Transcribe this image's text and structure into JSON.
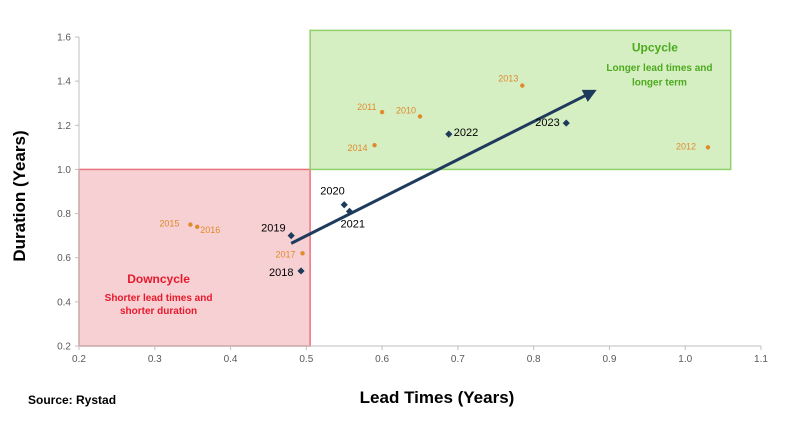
{
  "source_text": "Source: Rystad",
  "colors": {
    "orange": "#E08A2C",
    "navy": "#1F3B5C",
    "downcycle_fill": "#F6D0D3",
    "downcycle_border": "#E8737D",
    "downcycle_text": "#E8192C",
    "upcycle_fill": "#D5EFC3",
    "upcycle_border": "#8FD16A",
    "upcycle_text": "#4CAA1E",
    "axis": "#BFBFBF"
  },
  "chart_data": {
    "type": "scatter",
    "xlabel": "Lead Times (Years)",
    "ylabel": "Duration (Years)",
    "xlim": [
      0.2,
      1.1
    ],
    "ylim": [
      0.2,
      1.6
    ],
    "xticks": [
      0.2,
      0.3,
      0.4,
      0.5,
      0.6,
      0.7,
      0.8,
      0.9,
      1.0,
      1.1
    ],
    "xtick_labels": [
      "0.2",
      "0.3",
      "0.4",
      "0.5",
      "0.6",
      "0.7",
      "0.8",
      "0.9",
      "1.0",
      "1.1"
    ],
    "yticks": [
      0.2,
      0.4,
      0.6,
      0.8,
      1.0,
      1.2,
      1.4,
      1.6
    ],
    "ytick_labels": [
      "0.2",
      "0.4",
      "0.6",
      "0.8",
      "1.0",
      "1.2",
      "1.4",
      "1.6"
    ],
    "grid": false,
    "series": [
      {
        "marker": "circle",
        "points": [
          {
            "label": "2012",
            "x": 1.03,
            "y": 1.1
          },
          {
            "label": "2013",
            "x": 0.785,
            "y": 1.38
          },
          {
            "label": "2010",
            "x": 0.65,
            "y": 1.24
          },
          {
            "label": "2011",
            "x": 0.6,
            "y": 1.26
          },
          {
            "label": "2014",
            "x": 0.59,
            "y": 1.11
          },
          {
            "label": "2015",
            "x": 0.347,
            "y": 0.75
          },
          {
            "label": "2016",
            "x": 0.356,
            "y": 0.74
          },
          {
            "label": "2017",
            "x": 0.495,
            "y": 0.62
          }
        ]
      },
      {
        "marker": "diamond",
        "points": [
          {
            "label": "2018",
            "x": 0.493,
            "y": 0.54
          },
          {
            "label": "2019",
            "x": 0.48,
            "y": 0.7
          },
          {
            "label": "2020",
            "x": 0.55,
            "y": 0.84
          },
          {
            "label": "2021",
            "x": 0.557,
            "y": 0.81
          },
          {
            "label": "2022",
            "x": 0.688,
            "y": 1.16
          },
          {
            "label": "2023",
            "x": 0.843,
            "y": 1.21
          }
        ]
      }
    ],
    "regions": [
      {
        "title": "Downcycle",
        "subtitle_lines": [
          "Shorter lead times and",
          "shorter duration"
        ],
        "x": [
          0.2,
          0.505
        ],
        "y": [
          0.2,
          1.0
        ]
      },
      {
        "title": "Upcycle",
        "subtitle_lines": [
          "Longer lead times and",
          "longer term"
        ],
        "x": [
          0.505,
          1.06
        ],
        "y": [
          1.0,
          1.63
        ]
      }
    ],
    "arrow": {
      "from": {
        "x": 0.48,
        "y": 0.665
      },
      "to": {
        "x": 0.88,
        "y": 1.355
      }
    }
  }
}
